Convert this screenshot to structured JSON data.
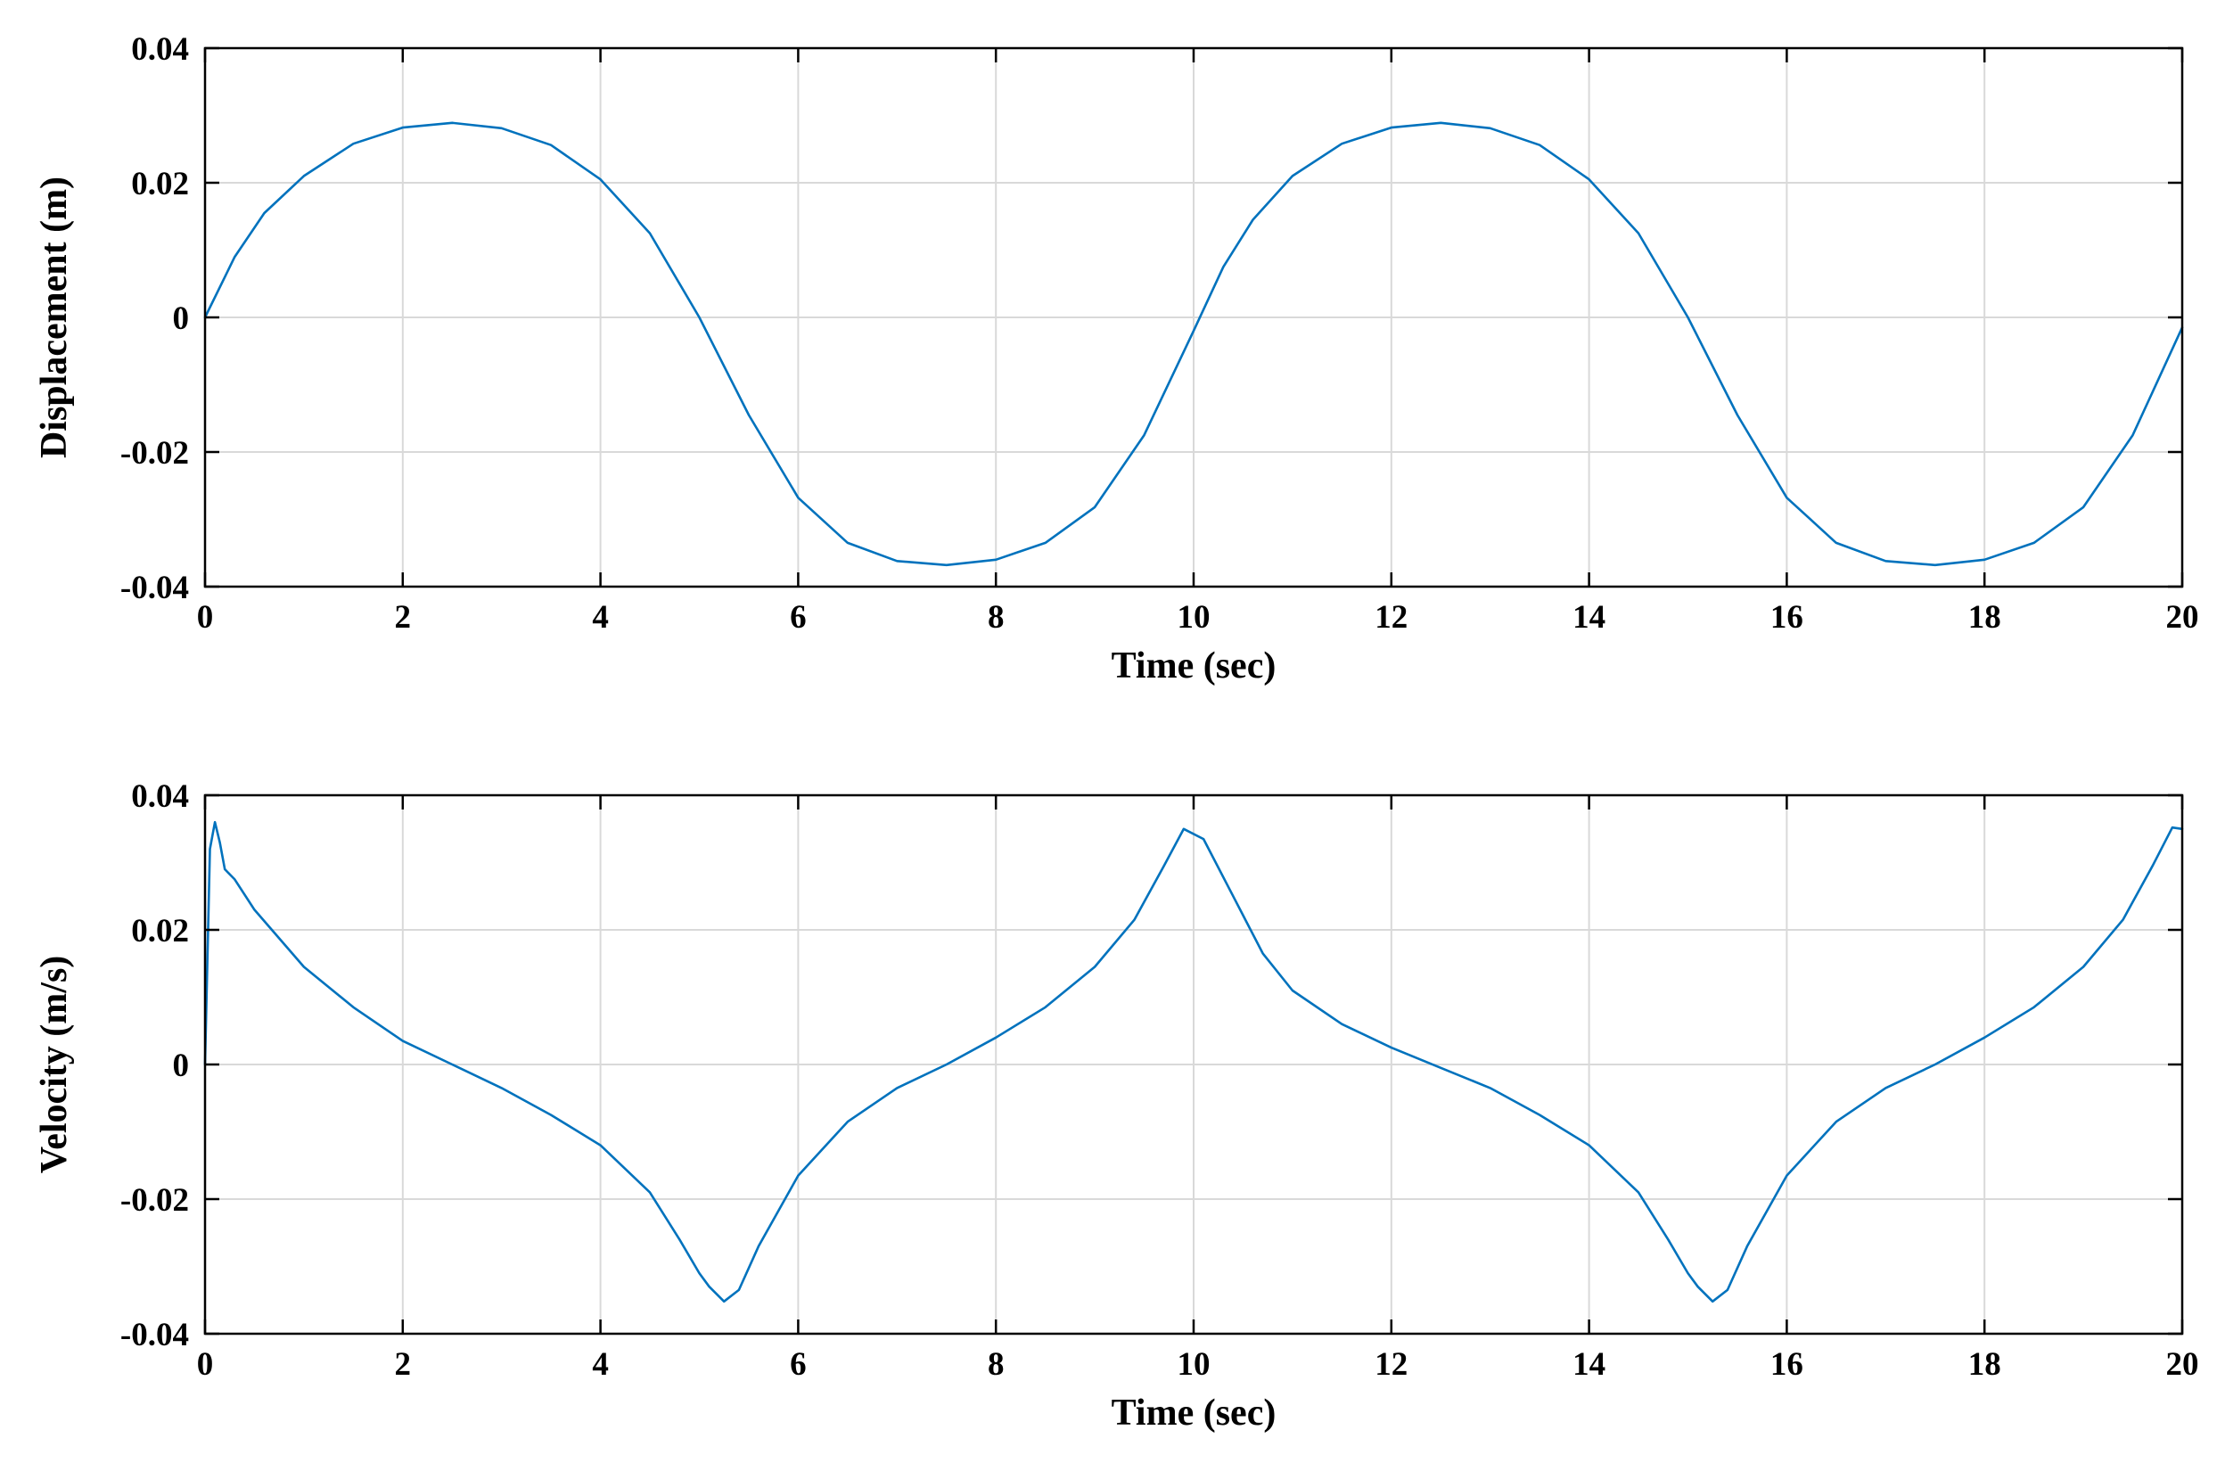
{
  "chart_data": [
    {
      "type": "line",
      "xlabel": "Time (sec)",
      "ylabel": "Displacement (m)",
      "xlim": [
        0,
        20
      ],
      "ylim": [
        -0.04,
        0.04
      ],
      "xticks": [
        0,
        2,
        4,
        6,
        8,
        10,
        12,
        14,
        16,
        18,
        20
      ],
      "xtick_labels": [
        "0",
        "2",
        "4",
        "6",
        "8",
        "10",
        "12",
        "14",
        "16",
        "18",
        "20"
      ],
      "yticks": [
        -0.04,
        -0.02,
        0,
        0.02,
        0.04
      ],
      "ytick_labels": [
        "-0.04",
        "-0.02",
        "0",
        "0.02",
        "0.04"
      ],
      "grid": true,
      "series": [
        {
          "color": "#0072BD",
          "x": [
            0,
            0.3,
            0.6,
            1.0,
            1.5,
            2.0,
            2.5,
            3.0,
            3.5,
            4.0,
            4.5,
            5.0,
            5.5,
            6.0,
            6.5,
            7.0,
            7.5,
            8.0,
            8.5,
            9.0,
            9.5,
            10.0,
            10.3,
            10.6,
            11.0,
            11.5,
            12.0,
            12.5,
            13.0,
            13.5,
            14.0,
            14.5,
            15.0,
            15.5,
            16.0,
            16.5,
            17.0,
            17.5,
            18.0,
            18.5,
            19.0,
            19.5,
            20.0
          ],
          "y": [
            0,
            0.009,
            0.0155,
            0.021,
            0.0258,
            0.0282,
            0.0289,
            0.0281,
            0.0256,
            0.0205,
            0.0125,
            0.0,
            -0.0145,
            -0.0268,
            -0.0335,
            -0.0362,
            -0.0368,
            -0.036,
            -0.0335,
            -0.0282,
            -0.0175,
            -0.002,
            0.0075,
            0.0145,
            0.021,
            0.0258,
            0.0282,
            0.0289,
            0.0281,
            0.0256,
            0.0205,
            0.0125,
            0.0,
            -0.0145,
            -0.0268,
            -0.0335,
            -0.0362,
            -0.0368,
            -0.036,
            -0.0335,
            -0.0282,
            -0.0175,
            -0.0015
          ]
        }
      ]
    },
    {
      "type": "line",
      "xlabel": "Time (sec)",
      "ylabel": "Velocity (m/s)",
      "xlim": [
        0,
        20
      ],
      "ylim": [
        -0.04,
        0.04
      ],
      "xticks": [
        0,
        2,
        4,
        6,
        8,
        10,
        12,
        14,
        16,
        18,
        20
      ],
      "xtick_labels": [
        "0",
        "2",
        "4",
        "6",
        "8",
        "10",
        "12",
        "14",
        "16",
        "18",
        "20"
      ],
      "yticks": [
        -0.04,
        -0.02,
        0,
        0.02,
        0.04
      ],
      "ytick_labels": [
        "-0.04",
        "-0.02",
        "0",
        "0.02",
        "0.04"
      ],
      "grid": true,
      "series": [
        {
          "color": "#0072BD",
          "x": [
            0,
            0.05,
            0.1,
            0.15,
            0.2,
            0.3,
            0.5,
            1.0,
            1.5,
            2.0,
            2.5,
            3.0,
            3.5,
            4.0,
            4.5,
            4.8,
            5.0,
            5.1,
            5.25,
            5.4,
            5.6,
            6.0,
            6.5,
            7.0,
            7.5,
            8.0,
            8.5,
            9.0,
            9.4,
            9.7,
            9.9,
            10.1,
            10.4,
            10.7,
            11.0,
            11.5,
            12.0,
            12.5,
            13.0,
            13.5,
            14.0,
            14.5,
            14.8,
            15.0,
            15.1,
            15.25,
            15.4,
            15.6,
            16.0,
            16.5,
            17.0,
            17.5,
            18.0,
            18.5,
            19.0,
            19.4,
            19.7,
            19.9,
            20.0
          ],
          "y": [
            0,
            0.032,
            0.036,
            0.033,
            0.029,
            0.0275,
            0.023,
            0.0145,
            0.0085,
            0.0035,
            0.0,
            -0.0035,
            -0.0075,
            -0.012,
            -0.019,
            -0.026,
            -0.031,
            -0.033,
            -0.0352,
            -0.0335,
            -0.027,
            -0.0165,
            -0.0085,
            -0.0035,
            0.0,
            0.004,
            0.0085,
            0.0145,
            0.0215,
            0.0295,
            0.035,
            0.0335,
            0.025,
            0.0165,
            0.011,
            0.006,
            0.0025,
            -0.0005,
            -0.0035,
            -0.0075,
            -0.012,
            -0.019,
            -0.026,
            -0.031,
            -0.033,
            -0.0352,
            -0.0335,
            -0.027,
            -0.0165,
            -0.0085,
            -0.0035,
            0.0,
            0.004,
            0.0085,
            0.0145,
            0.0215,
            0.0295,
            0.0352,
            0.035
          ]
        }
      ]
    }
  ]
}
